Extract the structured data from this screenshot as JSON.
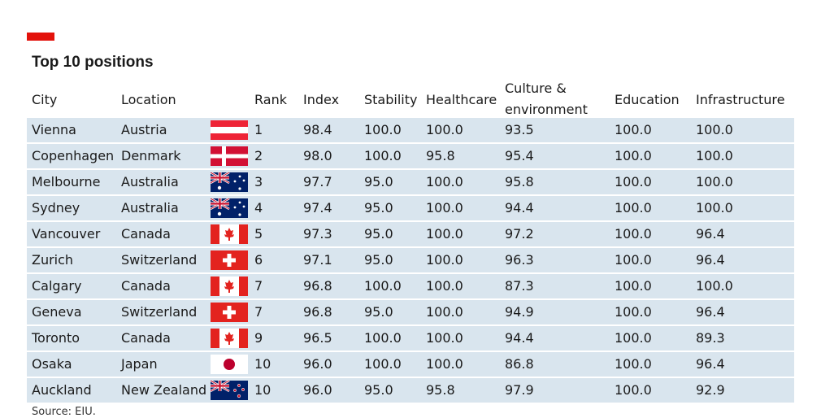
{
  "header": {
    "title": "Top 10 positions"
  },
  "table": {
    "columns": [
      "City",
      "Location",
      "Rank",
      "Index",
      "Stability",
      "Healthcare",
      "Culture & environment",
      "Education",
      "Infrastructure"
    ],
    "rows": [
      [
        "Vienna",
        "Austria",
        "1",
        "98.4",
        "100.0",
        "100.0",
        "93.5",
        "100.0",
        "100.0"
      ],
      [
        "Copenhagen",
        "Denmark",
        "2",
        "98.0",
        "100.0",
        "95.8",
        "95.4",
        "100.0",
        "100.0"
      ],
      [
        "Melbourne",
        "Australia",
        "3",
        "97.7",
        "95.0",
        "100.0",
        "95.8",
        "100.0",
        "100.0"
      ],
      [
        "Sydney",
        "Australia",
        "4",
        "97.4",
        "95.0",
        "100.0",
        "94.4",
        "100.0",
        "100.0"
      ],
      [
        "Vancouver",
        "Canada",
        "5",
        "97.3",
        "95.0",
        "100.0",
        "97.2",
        "100.0",
        "96.4"
      ],
      [
        "Zurich",
        "Switzerland",
        "6",
        "97.1",
        "95.0",
        "100.0",
        "96.3",
        "100.0",
        "96.4"
      ],
      [
        "Calgary",
        "Canada",
        "7",
        "96.8",
        "100.0",
        "100.0",
        "87.3",
        "100.0",
        "100.0"
      ],
      [
        "Geneva",
        "Switzerland",
        "7",
        "96.8",
        "95.0",
        "100.0",
        "94.9",
        "100.0",
        "96.4"
      ],
      [
        "Toronto",
        "Canada",
        "9",
        "96.5",
        "100.0",
        "100.0",
        "94.4",
        "100.0",
        "89.3"
      ],
      [
        "Osaka",
        "Japan",
        "10",
        "96.0",
        "100.0",
        "100.0",
        "86.8",
        "100.0",
        "96.4"
      ],
      [
        "Auckland",
        "New Zealand",
        "10",
        "96.0",
        "95.0",
        "95.8",
        "97.9",
        "100.0",
        "92.9"
      ]
    ]
  },
  "footer": {
    "source": "Source: EIU."
  }
}
